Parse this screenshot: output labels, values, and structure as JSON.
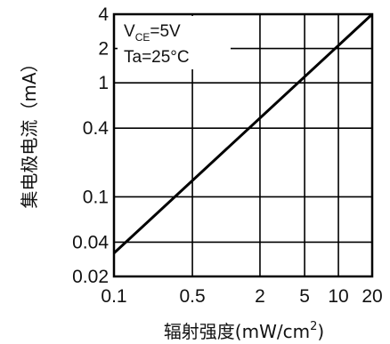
{
  "chart_data": {
    "type": "line",
    "xlabel": "辐射强度(mW/cm",
    "xlabel_sup": "2",
    "xlabel_tail": ")",
    "ylabel": "集电极电流（mA）",
    "x_scale": "log",
    "y_scale": "log",
    "xlim": [
      0.1,
      20
    ],
    "ylim": [
      0.02,
      4
    ],
    "x_ticks": [
      "0.1",
      "0.5",
      "2",
      "5",
      "10",
      "20"
    ],
    "y_ticks": [
      "0.02",
      "0.04",
      "0.1",
      "0.4",
      "1",
      "2",
      "4"
    ],
    "annotations": {
      "vce_main": "V",
      "vce_sub": "CE",
      "vce_value": "=5V",
      "ta": "Ta=25°C"
    },
    "grid": true,
    "series": [
      {
        "x": [
          0.1,
          20
        ],
        "y": [
          0.032,
          4
        ]
      }
    ]
  }
}
